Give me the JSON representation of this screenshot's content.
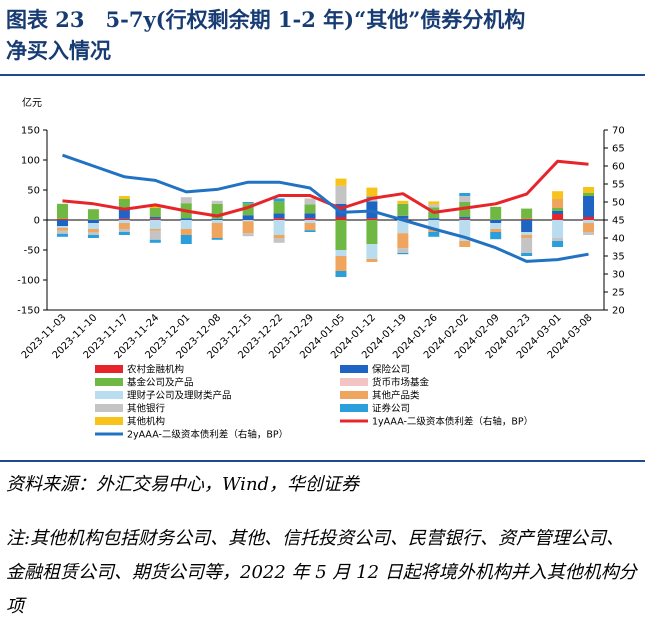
{
  "figure": {
    "title_line1": "图表 23　5-7y(行权剩余期 1-2 年)“其他”债券分机构",
    "title_line2": "净买入情况",
    "source": "资料来源：外汇交易中心，Wind，华创证券",
    "note": "注:其他机构包括财务公司、其他、信托投资公司、民营银行、资产管理公司、金融租赁公司、期货公司等，2022 年 5 月 12 日起将境外机构并入其他机构分项"
  },
  "colors": {
    "title": "#173b73",
    "农村金融机构": "#e8242b",
    "保险公司": "#1f64c2",
    "基金公司及产品": "#6fb843",
    "货币市场基金": "#f2c4c4",
    "理财子公司及理财类产品": "#b9dcef",
    "其他产品类": "#f0a55e",
    "其他银行": "#c4c4c4",
    "证券公司": "#2b9fdc",
    "其他机构": "#f7c31a",
    "line_5y": "#e8242b",
    "line_2y": "#2272c3"
  },
  "chart_data": {
    "type": "bar",
    "ylabel": "亿元",
    "ylim": [
      -150,
      150
    ],
    "yticks": [
      -150,
      -100,
      -50,
      0,
      50,
      100,
      150
    ],
    "y2lim": [
      20,
      70
    ],
    "y2ticks": [
      20,
      25,
      30,
      35,
      40,
      45,
      50,
      55,
      60,
      65,
      70
    ],
    "categories": [
      "2023-11-03",
      "2023-11-10",
      "2023-11-17",
      "2023-11-24",
      "2023-12-01",
      "2023-12-08",
      "2023-12-15",
      "2023-12-22",
      "2023-12-29",
      "2024-01-05",
      "2024-01-12",
      "2024-01-19",
      "2024-01-26",
      "2024-02-02",
      "2024-02-09",
      "2024-02-23",
      "2024-03-01",
      "2024-03-08"
    ],
    "series": [
      {
        "name": "农村金融机构",
        "values": [
          2,
          0,
          2,
          2,
          0,
          0,
          0,
          3,
          3,
          5,
          3,
          2,
          0,
          2,
          0,
          2,
          10,
          5
        ]
      },
      {
        "name": "保险公司",
        "values": [
          -10,
          -5,
          18,
          3,
          3,
          2,
          8,
          8,
          8,
          22,
          28,
          5,
          3,
          3,
          -5,
          -20,
          5,
          35
        ]
      },
      {
        "name": "基金公司及产品",
        "values": [
          25,
          18,
          15,
          15,
          25,
          25,
          20,
          20,
          15,
          -50,
          -40,
          20,
          18,
          25,
          22,
          17,
          5,
          5
        ]
      },
      {
        "name": "货币市场基金",
        "values": [
          0,
          0,
          0,
          0,
          0,
          0,
          0,
          0,
          0,
          0,
          0,
          0,
          0,
          0,
          0,
          0,
          0,
          0
        ]
      },
      {
        "name": "理财子公司及理财类产品",
        "values": [
          -3,
          -10,
          -5,
          -15,
          -15,
          -5,
          -2,
          -25,
          -5,
          -10,
          -25,
          -22,
          -15,
          -35,
          -10,
          -5,
          -30,
          -5
        ]
      },
      {
        "name": "其他产品类",
        "values": [
          -5,
          -5,
          -10,
          -3,
          -10,
          -25,
          -20,
          -5,
          -12,
          -25,
          -5,
          -25,
          -5,
          -10,
          -5,
          -5,
          15,
          -15
        ]
      },
      {
        "name": "其他银行",
        "values": [
          -5,
          -5,
          -5,
          -15,
          10,
          5,
          -5,
          -8,
          10,
          30,
          5,
          -8,
          5,
          10,
          0,
          -25,
          -5,
          -5
        ]
      },
      {
        "name": "证券公司",
        "values": [
          -5,
          -5,
          -5,
          -5,
          -15,
          -3,
          2,
          5,
          -3,
          -10,
          3,
          -2,
          -8,
          5,
          -12,
          -5,
          -10,
          0
        ]
      },
      {
        "name": "其他机构",
        "values": [
          0,
          0,
          5,
          3,
          0,
          0,
          0,
          0,
          0,
          12,
          15,
          5,
          5,
          0,
          0,
          0,
          13,
          10
        ]
      },
      {
        "name": "1yAAA-二级资本债利差（右轴，BP）",
        "type": "line",
        "axis": "right",
        "values": [
          50.3,
          49.5,
          48,
          49.2,
          47.5,
          46.1,
          48.5,
          51.8,
          51.8,
          48.2,
          51,
          52.3,
          47.1,
          48.3,
          49.5,
          52.2,
          61.3,
          60.5
        ]
      },
      {
        "name": "2yAAA-二级资本债利差（右轴，BP）",
        "type": "line",
        "axis": "right",
        "values": [
          63,
          60,
          57,
          56,
          52.8,
          53.5,
          55.5,
          55.5,
          53.9,
          47.1,
          47.5,
          45,
          42.5,
          40.2,
          37.3,
          33.5,
          34,
          35.5
        ]
      }
    ],
    "legend_position": "bottom",
    "grid": false
  }
}
